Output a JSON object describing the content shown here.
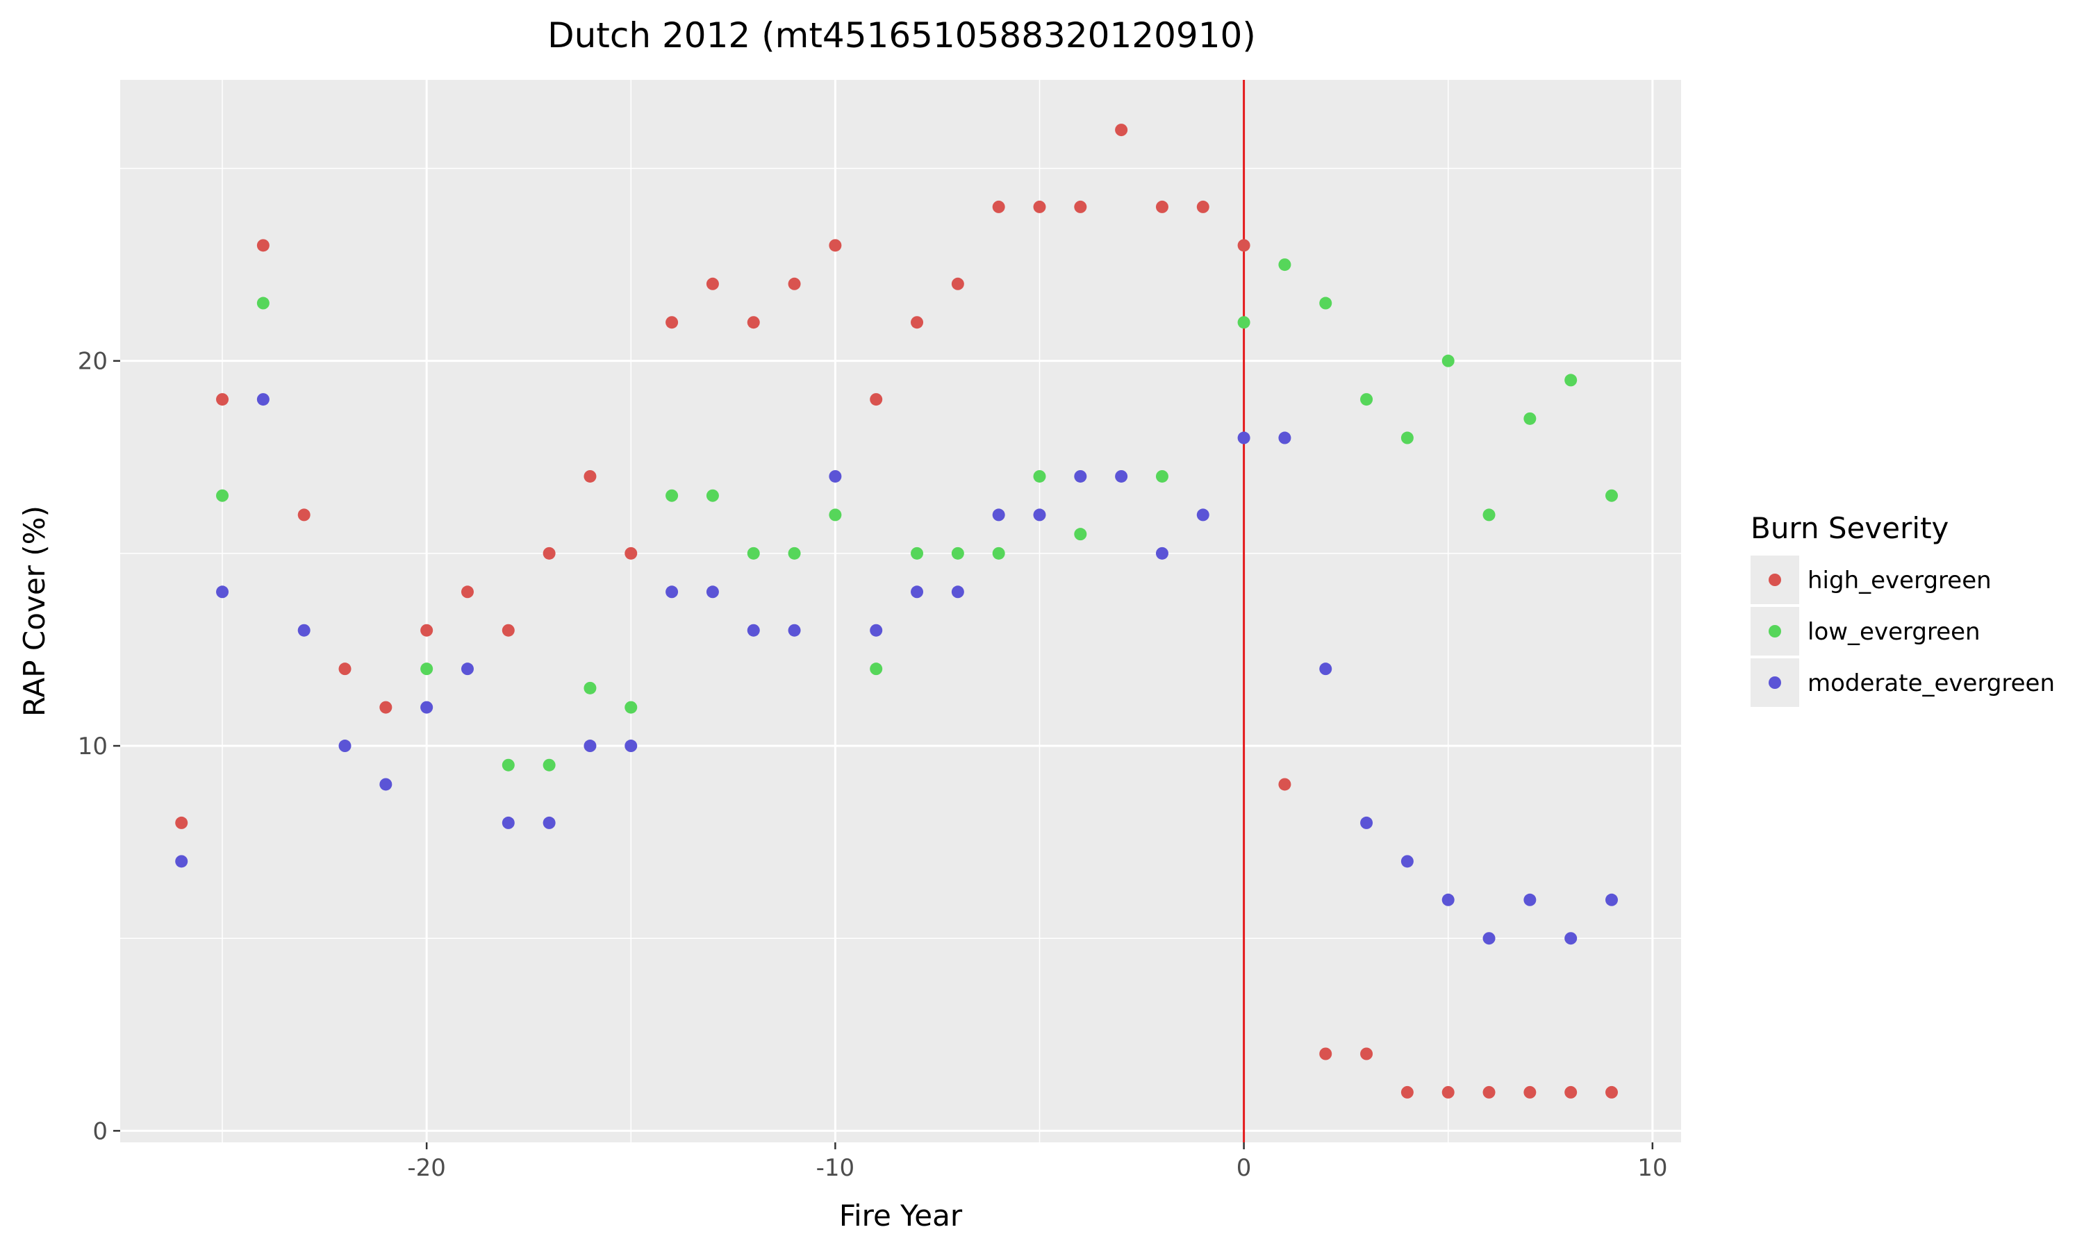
{
  "chart_data": {
    "type": "scatter",
    "title": "Dutch 2012 (mt4516510588320120910)",
    "xlabel": "Fire Year",
    "ylabel": "RAP Cover (%)",
    "xlim": [
      -27.5,
      10.7
    ],
    "ylim": [
      -0.3,
      27.3
    ],
    "x_ticks": [
      -20,
      -10,
      0,
      10
    ],
    "y_ticks": [
      0,
      10,
      20
    ],
    "grid": true,
    "vertical_reference_line": {
      "x": 0,
      "color": "#e31a1c"
    },
    "legend": {
      "title": "Burn Severity",
      "position": "right"
    },
    "series": [
      {
        "name": "high_evergreen",
        "color": "#d9534f",
        "points": [
          [
            -26,
            8
          ],
          [
            -25,
            19
          ],
          [
            -24,
            23
          ],
          [
            -23,
            16
          ],
          [
            -22,
            12
          ],
          [
            -21,
            11
          ],
          [
            -20,
            13
          ],
          [
            -19,
            14
          ],
          [
            -18,
            13
          ],
          [
            -17,
            15
          ],
          [
            -16,
            17
          ],
          [
            -15,
            15
          ],
          [
            -14,
            21
          ],
          [
            -13,
            22
          ],
          [
            -12,
            21
          ],
          [
            -11,
            22
          ],
          [
            -10,
            23
          ],
          [
            -9,
            19
          ],
          [
            -8,
            21
          ],
          [
            -7,
            22
          ],
          [
            -6,
            24
          ],
          [
            -5,
            24
          ],
          [
            -4,
            24
          ],
          [
            -3,
            26
          ],
          [
            -2,
            24
          ],
          [
            -1,
            24
          ],
          [
            0,
            23
          ],
          [
            1,
            9
          ],
          [
            2,
            2
          ],
          [
            3,
            2
          ],
          [
            4,
            1
          ],
          [
            5,
            1
          ],
          [
            6,
            1
          ],
          [
            7,
            1
          ],
          [
            8,
            1
          ],
          [
            9,
            1
          ]
        ]
      },
      {
        "name": "low_evergreen",
        "color": "#56d65a",
        "points": [
          [
            -25,
            16.5
          ],
          [
            -24,
            21.5
          ],
          [
            -20,
            12
          ],
          [
            -18,
            9.5
          ],
          [
            -17,
            9.5
          ],
          [
            -16,
            11.5
          ],
          [
            -15,
            11
          ],
          [
            -14,
            16.5
          ],
          [
            -13,
            16.5
          ],
          [
            -12,
            15
          ],
          [
            -11,
            15
          ],
          [
            -10,
            16
          ],
          [
            -9,
            12
          ],
          [
            -8,
            15
          ],
          [
            -7,
            15
          ],
          [
            -6,
            15
          ],
          [
            -5,
            17
          ],
          [
            -4,
            15.5
          ],
          [
            -2,
            17
          ],
          [
            0,
            21
          ],
          [
            1,
            22.5
          ],
          [
            2,
            21.5
          ],
          [
            3,
            19
          ],
          [
            4,
            18
          ],
          [
            5,
            20
          ],
          [
            6,
            16
          ],
          [
            7,
            18.5
          ],
          [
            8,
            19.5
          ],
          [
            9,
            16.5
          ]
        ]
      },
      {
        "name": "moderate_evergreen",
        "color": "#5b54d6",
        "points": [
          [
            -26,
            7
          ],
          [
            -25,
            14
          ],
          [
            -24,
            19
          ],
          [
            -23,
            13
          ],
          [
            -22,
            10
          ],
          [
            -21,
            9
          ],
          [
            -20,
            11
          ],
          [
            -19,
            12
          ],
          [
            -18,
            8
          ],
          [
            -17,
            8
          ],
          [
            -16,
            10
          ],
          [
            -15,
            10
          ],
          [
            -14,
            14
          ],
          [
            -13,
            14
          ],
          [
            -12,
            13
          ],
          [
            -11,
            13
          ],
          [
            -10,
            17
          ],
          [
            -9,
            13
          ],
          [
            -8,
            14
          ],
          [
            -7,
            14
          ],
          [
            -6,
            16
          ],
          [
            -5,
            16
          ],
          [
            -4,
            17
          ],
          [
            -3,
            17
          ],
          [
            -2,
            15
          ],
          [
            -1,
            16
          ],
          [
            0,
            18
          ],
          [
            1,
            18
          ],
          [
            2,
            12
          ],
          [
            3,
            8
          ],
          [
            4,
            7
          ],
          [
            5,
            6
          ],
          [
            6,
            5
          ],
          [
            7,
            6
          ],
          [
            8,
            5
          ],
          [
            9,
            6
          ]
        ]
      }
    ]
  }
}
